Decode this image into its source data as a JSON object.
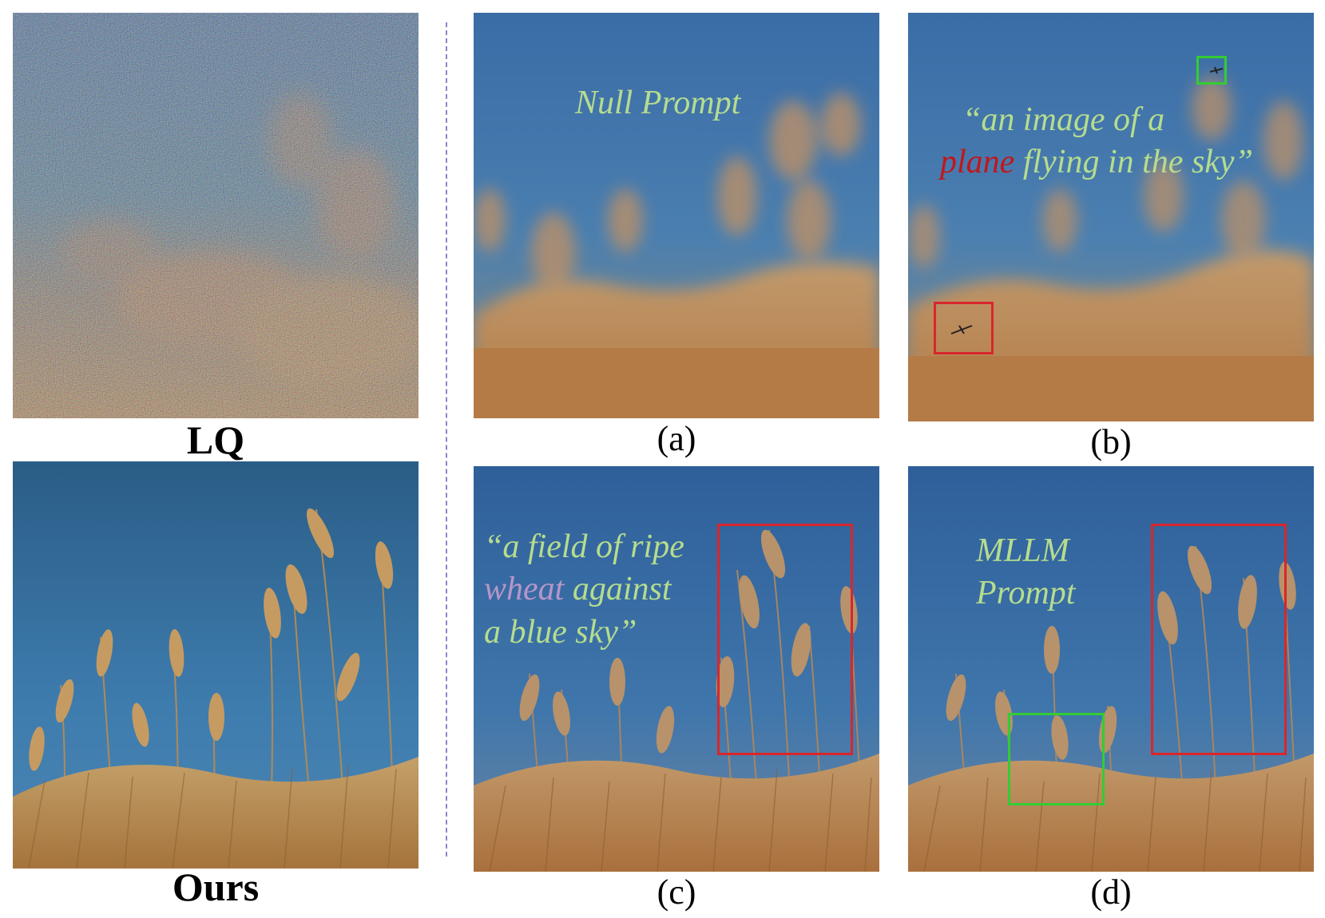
{
  "panels": {
    "lq": {
      "caption": "LQ"
    },
    "ours": {
      "caption": "Ours"
    },
    "a": {
      "caption": "(a)",
      "prompt": "Null Prompt"
    },
    "b": {
      "caption": "(b)",
      "prompt_line1": "“an image of a",
      "prompt_highlight": "plane",
      "prompt_rest": " flying in the sky”"
    },
    "c": {
      "caption": "(c)",
      "prompt_line1": "“a field of ripe",
      "prompt_highlight": "wheat",
      "prompt_line2_rest": " against",
      "prompt_line3": "a blue sky”"
    },
    "d": {
      "caption": "(d)",
      "prompt_line1": "MLLM",
      "prompt_line2": "Prompt"
    }
  },
  "colors": {
    "prompt_text": "#b6dc8e",
    "plane_highlight": "#c2161b",
    "wheat_highlight": "#b596c9",
    "red_box": "#d9262c",
    "green_box": "#33cc33",
    "divider": "#8f84c9"
  }
}
